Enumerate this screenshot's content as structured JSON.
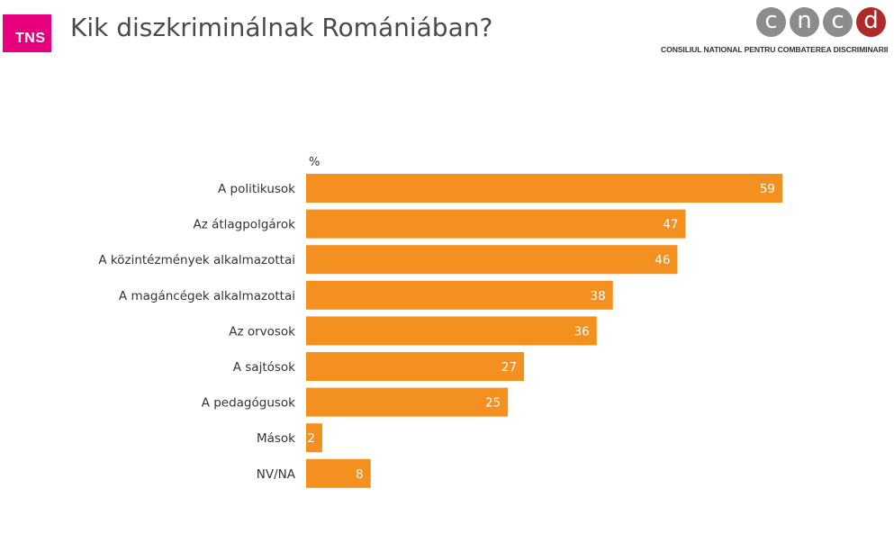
{
  "header": {
    "brand": "TNS",
    "title": "Kik diszkriminálnak Romániában?"
  },
  "cncd": {
    "letters": [
      "c",
      "n",
      "c",
      "d"
    ],
    "caption": "CONSILIUL NATIONAL PENTRU COMBATEREA DISCRIMINARII"
  },
  "colors": {
    "bar": "#f39020",
    "brand_pink": "#e6007e",
    "logo_gray": "#8c8c8c",
    "logo_accent": "#b02a2a"
  },
  "chart_data": {
    "type": "bar",
    "orientation": "horizontal",
    "unit": "%",
    "categories": [
      "A politikusok",
      "Az átlagpolgárok",
      "A közintézmények alkalmazottai",
      "A magáncégek alkalmazottai",
      "Az orvosok",
      "A sajtósok",
      "A pedagógusok",
      "Mások",
      "NV/NA"
    ],
    "values": [
      59,
      47,
      46,
      38,
      36,
      27,
      25,
      2,
      8
    ],
    "xlim": [
      0,
      59
    ],
    "grid": false,
    "legend": "none"
  }
}
